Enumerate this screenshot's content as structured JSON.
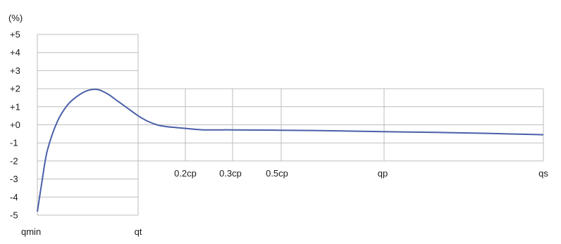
{
  "chart_data": {
    "type": "line",
    "unit_label": "(%)",
    "y_tick_labels": [
      "+5",
      "+4",
      "+3",
      "+2",
      "+1",
      "+0",
      "-1",
      "-2",
      "-3",
      "-4",
      "-5"
    ],
    "ylim": [
      -5,
      5
    ],
    "x_tick_labels": [
      "qmin",
      "qt",
      "0.2cp",
      "0.3cp",
      "0.5cp",
      "qp",
      "qs"
    ],
    "x_positions": [
      0,
      1,
      1.5,
      2,
      2.5,
      3.5,
      5
    ],
    "grid": true,
    "series": [
      {
        "x": [
          0,
          0.05,
          0.1,
          0.2,
          0.3,
          0.4,
          0.5,
          0.6,
          0.7,
          0.8,
          0.9,
          1.0,
          1.1,
          1.2,
          1.3,
          1.4,
          1.5,
          1.6,
          1.7,
          1.8,
          1.9,
          2.0,
          2.5,
          3.0,
          3.5,
          4.0,
          4.5,
          5.0
        ],
        "y": [
          -4.8,
          -3.0,
          -1.4,
          0.2,
          1.1,
          1.6,
          1.9,
          1.95,
          1.7,
          1.3,
          0.9,
          0.5,
          0.2,
          0.0,
          -0.1,
          -0.15,
          -0.2,
          -0.25,
          -0.28,
          -0.28,
          -0.28,
          -0.28,
          -0.3,
          -0.33,
          -0.38,
          -0.42,
          -0.48,
          -0.55
        ]
      }
    ]
  }
}
